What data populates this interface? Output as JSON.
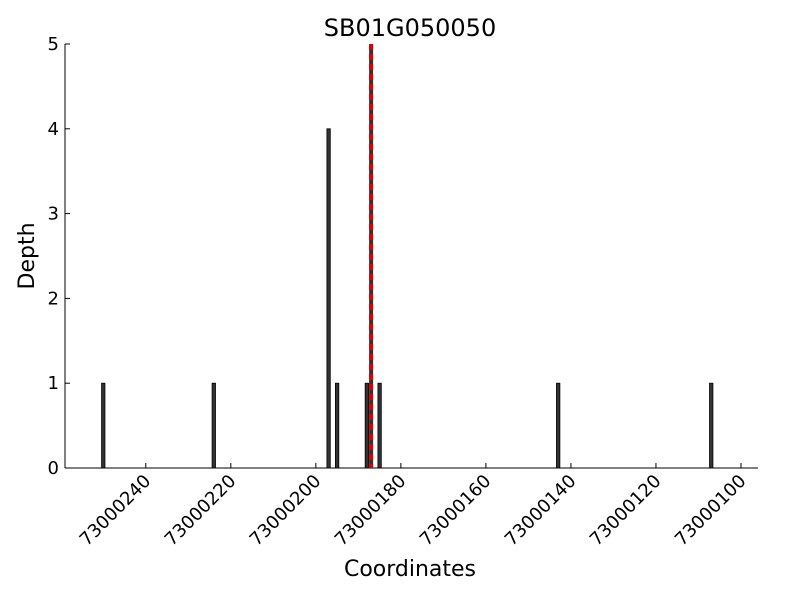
{
  "chart_data": {
    "type": "bar",
    "title": "SB01G050050",
    "xlabel": "Coordinates",
    "ylabel": "Depth",
    "x": [
      73000250,
      73000224,
      73000197,
      73000195,
      73000188,
      73000185,
      73000143,
      73000107
    ],
    "values": [
      1,
      1,
      4,
      1,
      1,
      1,
      1,
      1
    ],
    "color": "#333333",
    "xlim": [
      73000259,
      73000096
    ],
    "xticks": [
      73000240,
      73000220,
      73000200,
      73000180,
      73000160,
      73000140,
      73000120,
      73000100
    ],
    "ylim": [
      0,
      5
    ],
    "yticks": [
      0,
      1,
      2,
      3,
      4,
      5
    ],
    "vline": {
      "x": 73000187,
      "color": "#dd0000"
    }
  }
}
